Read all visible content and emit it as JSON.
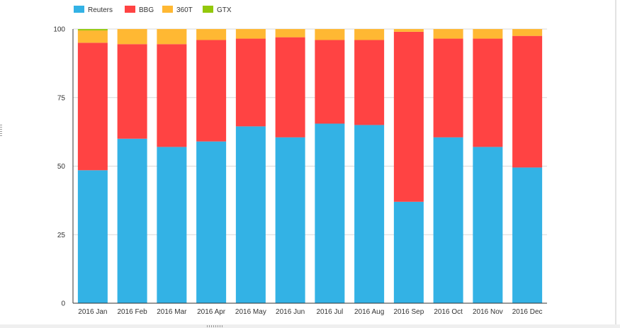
{
  "chart_data": {
    "type": "bar",
    "stacked": true,
    "categories": [
      "2016 Jan",
      "2016 Feb",
      "2016 Mar",
      "2016 Apr",
      "2016 May",
      "2016 Jun",
      "2016 Jul",
      "2016 Aug",
      "2016 Sep",
      "2016 Oct",
      "2016 Nov",
      "2016 Dec"
    ],
    "series": [
      {
        "name": "Reuters",
        "color": "#33b2e5",
        "values": [
          48.5,
          60.0,
          57.0,
          59.0,
          64.5,
          60.5,
          65.5,
          65.0,
          37.0,
          60.5,
          57.0,
          49.5
        ]
      },
      {
        "name": "BBG",
        "color": "#ff4343",
        "values": [
          46.5,
          34.5,
          37.5,
          37.0,
          32.0,
          36.5,
          30.5,
          31.0,
          62.0,
          36.0,
          39.5,
          48.0
        ]
      },
      {
        "name": "360T",
        "color": "#ffb833",
        "values": [
          4.5,
          5.5,
          5.5,
          4.0,
          3.5,
          3.0,
          4.0,
          4.0,
          1.0,
          3.5,
          3.5,
          2.5
        ]
      },
      {
        "name": "GTX",
        "color": "#93c80b",
        "values": [
          0.5,
          0,
          0,
          0,
          0,
          0,
          0,
          0,
          0,
          0,
          0,
          0
        ]
      }
    ],
    "y_ticks": [
      0,
      25,
      50,
      75,
      100
    ],
    "ylim": [
      0,
      100
    ],
    "grid": true,
    "legend_position": "top-left",
    "title": "",
    "xlabel": "",
    "ylabel": ""
  }
}
